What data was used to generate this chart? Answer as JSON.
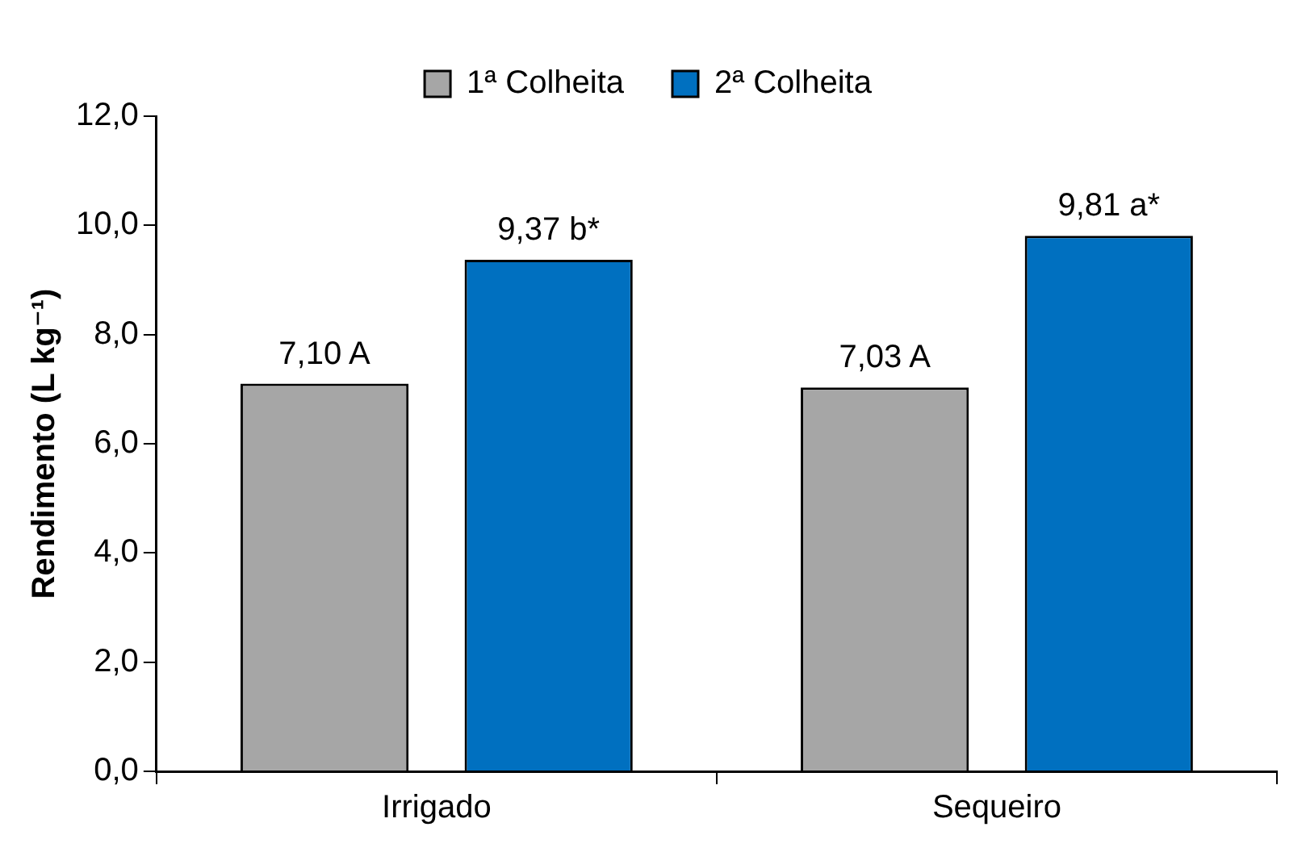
{
  "chart_data": {
    "type": "bar",
    "ylabel": "Rendimento (L kg⁻¹)",
    "categories": [
      "Irrigado",
      "Sequeiro"
    ],
    "series": [
      {
        "name": "1ª Colheita",
        "color": "#a6a6a6",
        "values": [
          7.1,
          7.03
        ],
        "value_labels": [
          "7,10 A",
          "7,03 A"
        ]
      },
      {
        "name": "2ª Colheita",
        "color": "#0070c0",
        "values": [
          9.37,
          9.81
        ],
        "value_labels": [
          "9,37 b*",
          "9,81 a*"
        ]
      }
    ],
    "ylim": [
      0,
      12
    ],
    "yticks": [
      {
        "value": 0,
        "label": "0,0"
      },
      {
        "value": 2,
        "label": "2,0"
      },
      {
        "value": 4,
        "label": "4,0"
      },
      {
        "value": 6,
        "label": "6,0"
      },
      {
        "value": 8,
        "label": "8,0"
      },
      {
        "value": 10,
        "label": "10,0"
      },
      {
        "value": 12,
        "label": "12,0"
      }
    ],
    "grid": false,
    "legend": "top"
  }
}
